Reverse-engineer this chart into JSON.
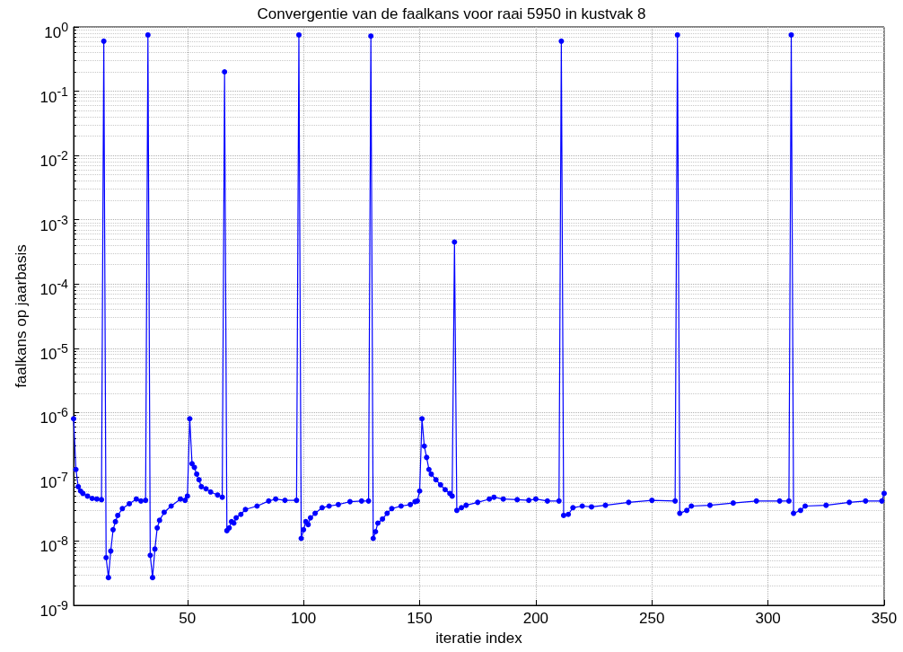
{
  "chart_data": {
    "type": "line",
    "title": "Convergentie van de faalkans voor raai 5950 in kustvak 8",
    "xlabel": "iteratie index",
    "ylabel": "faalkans op jaarbasis",
    "log": true,
    "grid": true,
    "marker": "circle",
    "line_style": "solid",
    "xlim": [
      1,
      350
    ],
    "xticks": [
      50,
      100,
      150,
      200,
      250,
      300,
      350
    ],
    "ylim": [
      1e-09,
      1
    ],
    "yticks": [
      {
        "value": 1e-09,
        "label": "10$^{-9}$"
      },
      {
        "value": 1e-08,
        "label": "10$^{-8}$"
      },
      {
        "value": 1e-07,
        "label": "10$^{-7}$"
      },
      {
        "value": 1e-06,
        "label": "10$^{-6}$"
      },
      {
        "value": 1e-05,
        "label": "10$^{-5}$"
      },
      {
        "value": 0.0001,
        "label": "10$^{-4}$"
      },
      {
        "value": 0.001,
        "label": "10$^{-3}$"
      },
      {
        "value": 0.01,
        "label": "10$^{-2}$"
      },
      {
        "value": 0.1,
        "label": "10$^{-1}$"
      },
      {
        "value": 1,
        "label": "10$^{0}$"
      }
    ],
    "series": [
      {
        "color": "#0000ff",
        "x": [
          1,
          2,
          3,
          4,
          5,
          7,
          9,
          11,
          13,
          14,
          15,
          16,
          17,
          18,
          19,
          20,
          22,
          25,
          28,
          30,
          32,
          33,
          34,
          35,
          36,
          37,
          38,
          40,
          43,
          47,
          49,
          50,
          51,
          52,
          53,
          54,
          55,
          56,
          58,
          60,
          63,
          65,
          66,
          67,
          68,
          69,
          70,
          71,
          73,
          75,
          80,
          85,
          88,
          92,
          97,
          98,
          99,
          100,
          101,
          102,
          103,
          105,
          108,
          111,
          115,
          120,
          125,
          128,
          129,
          130,
          131,
          132,
          134,
          136,
          138,
          142,
          146,
          148,
          149,
          150,
          151,
          152,
          153,
          154,
          155,
          157,
          159,
          161,
          163,
          164,
          165,
          166,
          168,
          170,
          175,
          180,
          182,
          186,
          192,
          197,
          200,
          205,
          210,
          211,
          212,
          214,
          216,
          220,
          224,
          230,
          240,
          250,
          260,
          261,
          262,
          265,
          267,
          275,
          285,
          295,
          305,
          309,
          310,
          311,
          314,
          316,
          325,
          335,
          342,
          349,
          350
        ],
        "values": [
          8e-07,
          1.3e-07,
          7e-08,
          6e-08,
          5.5e-08,
          5e-08,
          4.6e-08,
          4.5e-08,
          4.4e-08,
          0.6,
          5.5e-09,
          2.7e-09,
          7e-09,
          1.5e-08,
          2e-08,
          2.5e-08,
          3.2e-08,
          3.8e-08,
          4.5e-08,
          4.2e-08,
          4.3e-08,
          0.75,
          6e-09,
          2.7e-09,
          7.5e-09,
          1.6e-08,
          2.1e-08,
          2.8e-08,
          3.5e-08,
          4.5e-08,
          4.3e-08,
          5e-08,
          8e-07,
          1.6e-07,
          1.4e-07,
          1.1e-07,
          9e-08,
          7e-08,
          6.5e-08,
          5.8e-08,
          5.2e-08,
          4.8e-08,
          0.2,
          1.45e-08,
          1.6e-08,
          2e-08,
          1.9e-08,
          2.3e-08,
          2.6e-08,
          3.1e-08,
          3.5e-08,
          4.2e-08,
          4.5e-08,
          4.3e-08,
          4.3e-08,
          0.75,
          1.1e-08,
          1.5e-08,
          2e-08,
          1.8e-08,
          2.3e-08,
          2.7e-08,
          3.3e-08,
          3.5e-08,
          3.7e-08,
          4.1e-08,
          4.2e-08,
          4.2e-08,
          0.72,
          1.1e-08,
          1.4e-08,
          1.9e-08,
          2.2e-08,
          2.7e-08,
          3.2e-08,
          3.5e-08,
          3.7e-08,
          4.1e-08,
          4.2e-08,
          6e-08,
          8e-07,
          3e-07,
          2e-07,
          1.3e-07,
          1.1e-07,
          9e-08,
          7.5e-08,
          6.3e-08,
          5.5e-08,
          5e-08,
          0.00045,
          3e-08,
          3.3e-08,
          3.6e-08,
          4e-08,
          4.5e-08,
          4.8e-08,
          4.5e-08,
          4.4e-08,
          4.3e-08,
          4.5e-08,
          4.2e-08,
          4.2e-08,
          0.6,
          2.5e-08,
          2.6e-08,
          3.3e-08,
          3.5e-08,
          3.4e-08,
          3.6e-08,
          4e-08,
          4.3e-08,
          4.2e-08,
          0.75,
          2.7e-08,
          3e-08,
          3.5e-08,
          3.6e-08,
          3.9e-08,
          4.2e-08,
          4.2e-08,
          4.2e-08,
          0.75,
          2.7e-08,
          3e-08,
          3.5e-08,
          3.6e-08,
          4e-08,
          4.2e-08,
          4.2e-08,
          5.5e-08
        ]
      }
    ]
  }
}
